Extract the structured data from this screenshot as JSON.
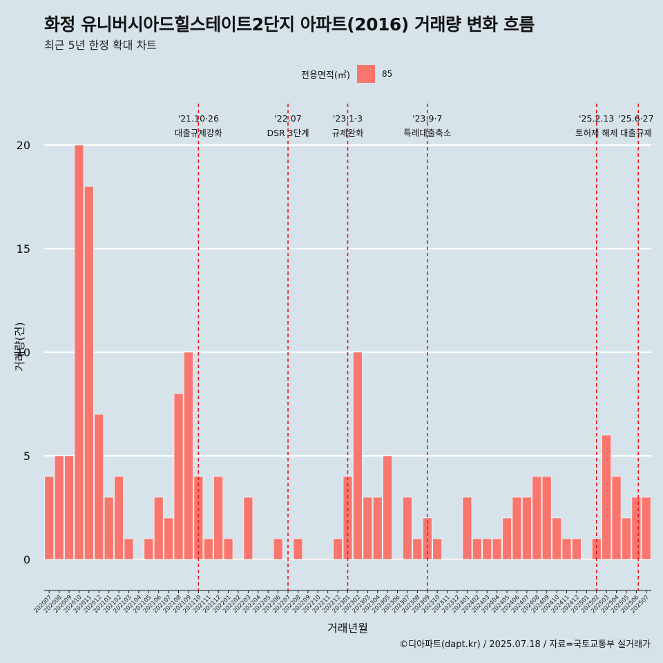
{
  "header": {
    "title": "화정 유니버시아드힐스테이트2단지 아파트(2016) 거래량 변화 흐름",
    "subtitle": "최근 5년 한정 확대 차트"
  },
  "legend": {
    "title": "전용면적(㎡)",
    "items": [
      {
        "label": "85",
        "color": "#f8766d"
      }
    ]
  },
  "caption": "©디아파트(dapt.kr) / 2025.07.18 / 자료=국토교통부 실거래가",
  "chart_data": {
    "type": "bar",
    "xlabel": "거래년월",
    "ylabel": "거래량(건)",
    "ylim": [
      -1.5,
      22
    ],
    "yticks": [
      0,
      5,
      10,
      15,
      20
    ],
    "grid": true,
    "legend_position": "top",
    "bar_color": "#f8766d",
    "categories": [
      "202007",
      "202008",
      "202009",
      "202010",
      "202011",
      "202012",
      "202101",
      "202102",
      "202103",
      "202104",
      "202105",
      "202106",
      "202107",
      "202108",
      "202109",
      "202110",
      "202111",
      "202112",
      "202201",
      "202202",
      "202203",
      "202204",
      "202205",
      "202206",
      "202207",
      "202208",
      "202209",
      "202210",
      "202211",
      "202212",
      "202301",
      "202302",
      "202303",
      "202304",
      "202305",
      "202306",
      "202307",
      "202308",
      "202309",
      "202310",
      "202311",
      "202312",
      "202401",
      "202402",
      "202403",
      "202404",
      "202405",
      "202406",
      "202407",
      "202408",
      "202409",
      "202410",
      "202411",
      "202412",
      "202501",
      "202502",
      "202503",
      "202504",
      "202505",
      "202506",
      "202507"
    ],
    "series": [
      {
        "values": [
          4,
          5,
          5,
          20,
          18,
          7,
          3,
          4,
          1,
          0,
          1,
          3,
          2,
          8,
          10,
          4,
          1,
          4,
          1,
          0,
          3,
          0,
          0,
          1,
          0,
          1,
          0,
          0,
          0,
          1,
          4,
          10,
          3,
          3,
          5,
          0,
          3,
          1,
          2,
          1,
          0,
          0,
          3,
          1,
          1,
          1,
          2,
          3,
          3,
          4,
          4,
          2,
          1,
          1,
          0,
          1,
          6,
          4,
          2,
          3,
          3
        ]
      }
    ],
    "events": [
      {
        "category": "202110",
        "date": "'21.10·26",
        "label": "대출규제강화"
      },
      {
        "category": "202207",
        "date": "'22.07",
        "label": "DSR 3단계"
      },
      {
        "category": "202301",
        "date": "'23.1·3",
        "label": "규제완화"
      },
      {
        "category": "202309",
        "date": "'23.9·7",
        "label": "특례대출축소"
      },
      {
        "category": "202502",
        "date": "'25.2.13",
        "label": "토허제 해제"
      },
      {
        "category": "202506",
        "date": "'25.6·27",
        "label": "대출규제"
      }
    ],
    "event_line_color": "#e31a1c"
  }
}
